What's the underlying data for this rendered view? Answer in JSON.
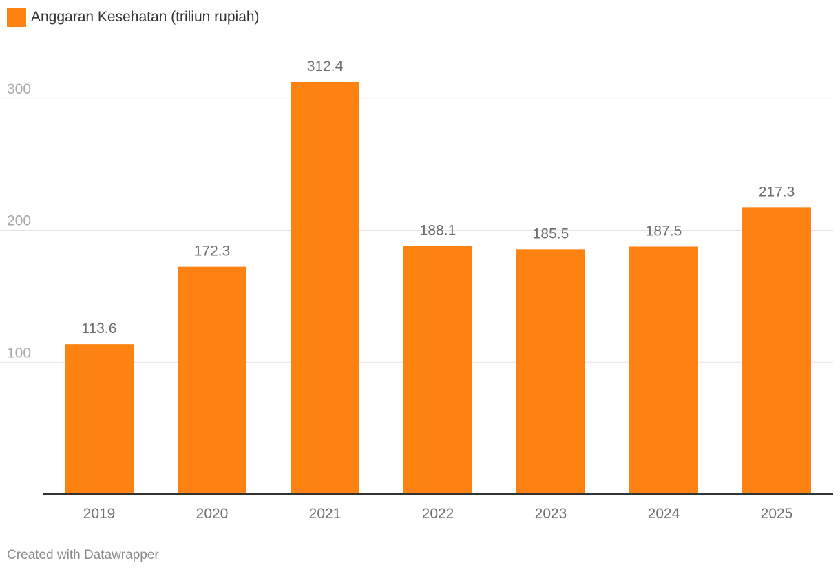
{
  "legend": {
    "label": "Anggaran Kesehatan (triliun rupiah)",
    "color": "#fd8211"
  },
  "footer": {
    "text": "Created with Datawrapper"
  },
  "chart_data": {
    "type": "bar",
    "title": "",
    "xlabel": "",
    "ylabel": "",
    "categories": [
      "2019",
      "2020",
      "2021",
      "2022",
      "2023",
      "2024",
      "2025"
    ],
    "series": [
      {
        "name": "Anggaran Kesehatan (triliun rupiah)",
        "values": [
          113.6,
          172.3,
          312.4,
          188.1,
          185.5,
          187.5,
          217.3
        ],
        "labels": [
          "113.6",
          "172.3",
          "312.4",
          "188.1",
          "185.5",
          "187.5",
          "217.3"
        ]
      }
    ],
    "ylim": [
      0,
      312.4
    ],
    "yticks": [
      100,
      200,
      300
    ],
    "ytick_labels": [
      "100",
      "200",
      "300"
    ],
    "grid": true,
    "colors": {
      "bar": "#fd8211",
      "grid": "#e3e3e3",
      "axis": "#333333"
    }
  }
}
